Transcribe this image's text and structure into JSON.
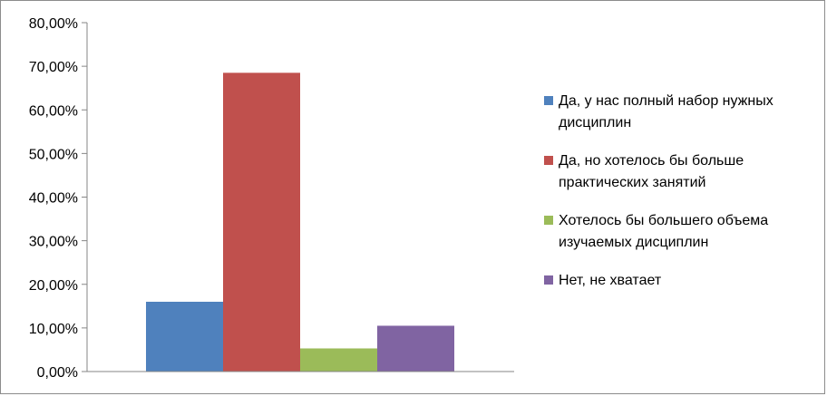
{
  "chart_data": {
    "type": "bar",
    "title": "",
    "xlabel": "",
    "ylabel": "",
    "ylim": [
      0,
      0.8
    ],
    "y_ticks": [
      "0,00%",
      "10,00%",
      "20,00%",
      "30,00%",
      "40,00%",
      "50,00%",
      "60,00%",
      "70,00%",
      "80,00%"
    ],
    "grid": false,
    "legend_position": "right",
    "series": [
      {
        "name": "Да, у нас полный набор нужных дисциплин",
        "values": [
          0.16
        ],
        "color": "#4f81bd"
      },
      {
        "name": "Да, но хотелось бы больше практических занятий",
        "values": [
          0.685
        ],
        "color": "#c0504d"
      },
      {
        "name": "Хотелось бы большего объема изучаемых дисциплин",
        "values": [
          0.053
        ],
        "color": "#9bbb59"
      },
      {
        "name": "Нет, не хватает",
        "values": [
          0.105
        ],
        "color": "#8064a2"
      }
    ]
  }
}
